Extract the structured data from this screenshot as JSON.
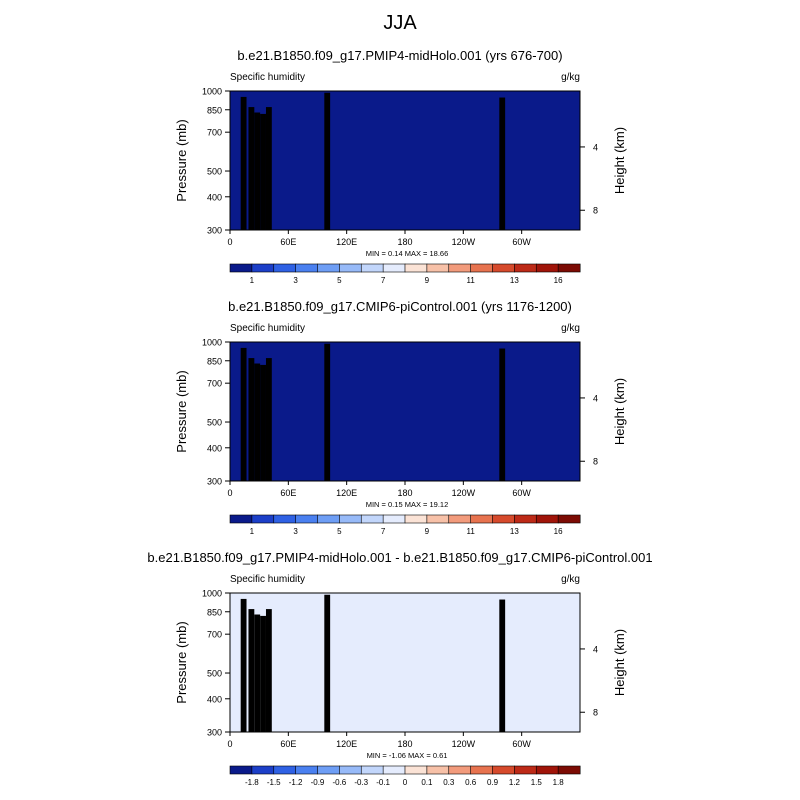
{
  "figure": {
    "title": "JJA"
  },
  "chart_data": [
    {
      "type": "heatmap",
      "title": "b.e21.B1850.f09_g17.PMIP4-midHolo.001 (yrs 676-700)",
      "left_label": "Specific humidity",
      "units": "g/kg",
      "ylabel": "Pressure (mb)",
      "ylabel_right": "Height (km)",
      "yticks": [
        "300",
        "400",
        "500",
        "700",
        "850",
        "1000"
      ],
      "yticks_right": [
        "8",
        "4"
      ],
      "xticks": [
        "0",
        "60E",
        "120E",
        "180",
        "120W",
        "60W"
      ],
      "ylim": [
        1000,
        300
      ],
      "stats": "MIN =   0.14  MAX =   18.66",
      "min": 0.14,
      "max": 18.66,
      "colorbar_labels": [
        "1",
        "3",
        "5",
        "7",
        "9",
        "11",
        "13",
        "16"
      ],
      "colorbar_colors": [
        "#0a1a8a",
        "#1c3fc8",
        "#2f61e4",
        "#4a80f0",
        "#6e9ef5",
        "#97baf8",
        "#c2d6fb",
        "#e5ecfd",
        "#fbe3d6",
        "#f7c1a8",
        "#f29b7c",
        "#e7734f",
        "#d64a2c",
        "#bd2a17",
        "#a01409",
        "#7c0b04"
      ]
    },
    {
      "type": "heatmap",
      "title": "b.e21.B1850.f09_g17.CMIP6-piControl.001 (yrs 1176-1200)",
      "left_label": "Specific humidity",
      "units": "g/kg",
      "ylabel": "Pressure (mb)",
      "ylabel_right": "Height (km)",
      "yticks": [
        "300",
        "400",
        "500",
        "700",
        "850",
        "1000"
      ],
      "yticks_right": [
        "8",
        "4"
      ],
      "xticks": [
        "0",
        "60E",
        "120E",
        "180",
        "120W",
        "60W"
      ],
      "ylim": [
        1000,
        300
      ],
      "stats": "MIN =   0.15  MAX =   19.12",
      "min": 0.15,
      "max": 19.12,
      "colorbar_labels": [
        "1",
        "3",
        "5",
        "7",
        "9",
        "11",
        "13",
        "16"
      ],
      "colorbar_colors": [
        "#0a1a8a",
        "#1c3fc8",
        "#2f61e4",
        "#4a80f0",
        "#6e9ef5",
        "#97baf8",
        "#c2d6fb",
        "#e5ecfd",
        "#fbe3d6",
        "#f7c1a8",
        "#f29b7c",
        "#e7734f",
        "#d64a2c",
        "#bd2a17",
        "#a01409",
        "#7c0b04"
      ]
    },
    {
      "type": "heatmap",
      "title": "b.e21.B1850.f09_g17.PMIP4-midHolo.001 - b.e21.B1850.f09_g17.CMIP6-piControl.001",
      "left_label": "Specific humidity",
      "units": "g/kg",
      "ylabel": "Pressure (mb)",
      "ylabel_right": "Height (km)",
      "yticks": [
        "300",
        "400",
        "500",
        "700",
        "850",
        "1000"
      ],
      "yticks_right": [
        "8",
        "4"
      ],
      "xticks": [
        "0",
        "60E",
        "120E",
        "180",
        "120W",
        "60W"
      ],
      "ylim": [
        1000,
        300
      ],
      "stats": "MIN =  -1.06  MAX =   0.61",
      "min": -1.06,
      "max": 0.61,
      "colorbar_labels": [
        "-1.8",
        "-1.5",
        "-1.2",
        "-0.9",
        "-0.6",
        "-0.3",
        "-0.1",
        "0",
        "0.1",
        "0.3",
        "0.6",
        "0.9",
        "1.2",
        "1.5",
        "1.8"
      ],
      "colorbar_colors": [
        "#0a1a8a",
        "#1c3fc8",
        "#2f61e4",
        "#4a80f0",
        "#6e9ef5",
        "#97baf8",
        "#c2d6fb",
        "#e5ecfd",
        "#fbe3d6",
        "#f7c1a8",
        "#f29b7c",
        "#e7734f",
        "#d64a2c",
        "#bd2a17",
        "#a01409",
        "#7c0b04"
      ]
    }
  ]
}
